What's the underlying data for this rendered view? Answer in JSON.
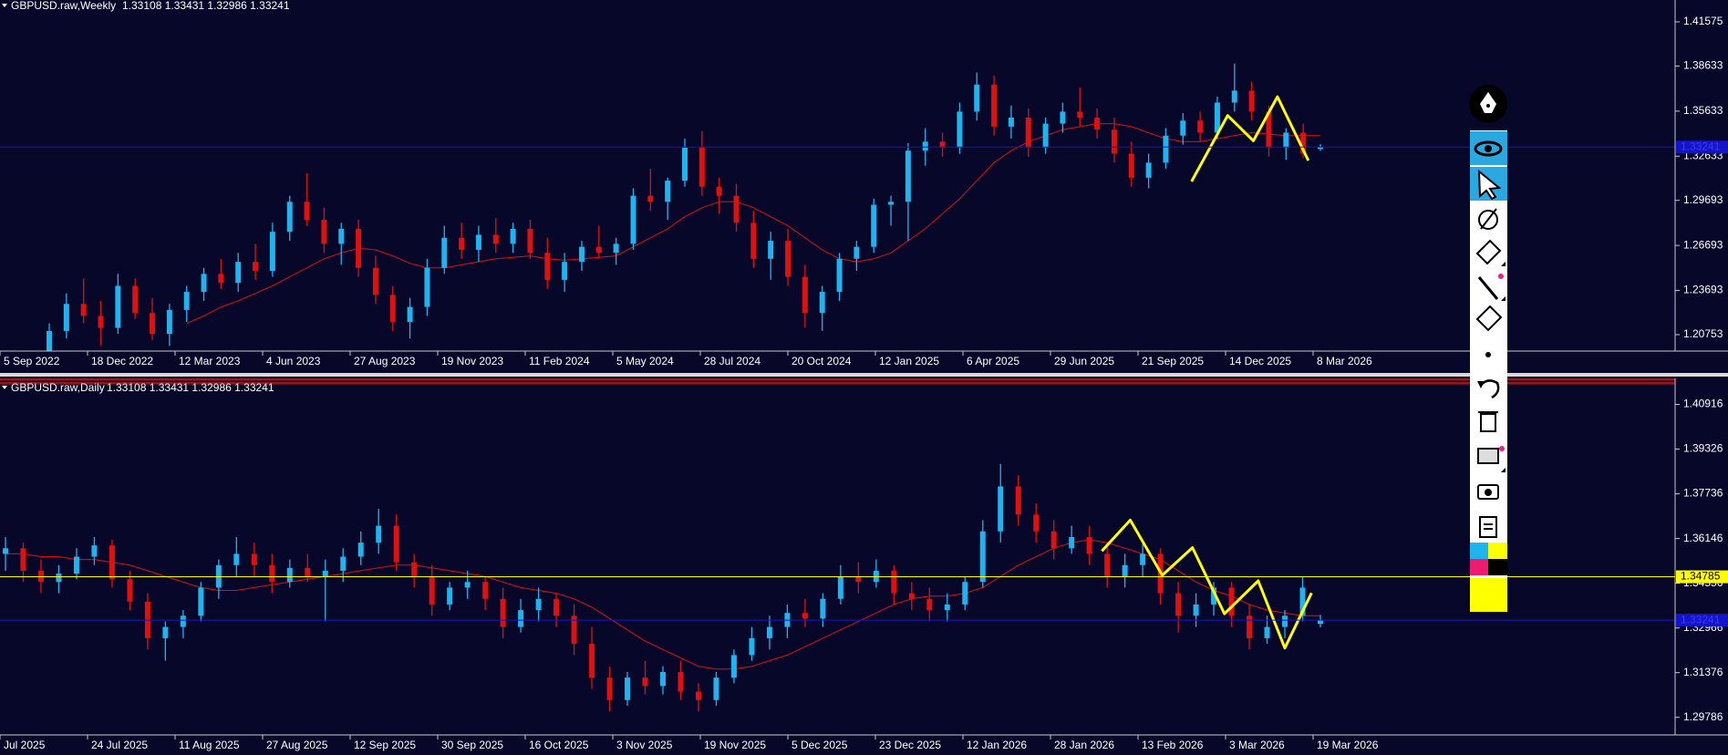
{
  "panes": [
    {
      "title": "GBPUSD.raw,Weekly",
      "quote": "1.33108 1.33431 1.32986 1.33241",
      "ylim": [
        1.1966,
        1.4303
      ],
      "yticks": [
        1.41575,
        1.38633,
        1.35633,
        1.32633,
        1.29693,
        1.26693,
        1.23693,
        1.20753
      ],
      "dates": [
        "5 Sep 2022",
        "18 Dec 2022",
        "12 Mar 2023",
        "4 Jun 2023",
        "27 Aug 2023",
        "19 Nov 2023",
        "11 Feb 2024",
        "5 May 2024",
        "28 Jul 2024",
        "20 Oct 2024",
        "12 Jan 2025",
        "6 Apr 2025",
        "29 Jun 2025",
        "21 Sep 2025",
        "14 Dec 2025",
        "8 Mar 2026"
      ],
      "up_color": "#1eb4f0",
      "down_color": "#e01010",
      "ma_color": "#e01010",
      "bid": 1.33241,
      "bid_color": "#1515c8",
      "candles": [
        [
          1.195,
          1.215,
          1.19,
          1.21
        ],
        [
          1.21,
          1.235,
          1.205,
          1.228
        ],
        [
          1.228,
          1.245,
          1.215,
          1.22
        ],
        [
          1.22,
          1.23,
          1.2,
          1.212
        ],
        [
          1.212,
          1.248,
          1.208,
          1.24
        ],
        [
          1.24,
          1.245,
          1.218,
          1.222
        ],
        [
          1.222,
          1.232,
          1.204,
          1.208
        ],
        [
          1.208,
          1.228,
          1.2,
          1.224
        ],
        [
          1.224,
          1.24,
          1.216,
          1.236
        ],
        [
          1.236,
          1.252,
          1.23,
          1.248
        ],
        [
          1.248,
          1.258,
          1.238,
          1.242
        ],
        [
          1.242,
          1.262,
          1.236,
          1.256
        ],
        [
          1.256,
          1.268,
          1.244,
          1.25
        ],
        [
          1.25,
          1.282,
          1.246,
          1.276
        ],
        [
          1.276,
          1.3,
          1.27,
          1.296
        ],
        [
          1.296,
          1.315,
          1.28,
          1.284
        ],
        [
          1.284,
          1.292,
          1.262,
          1.268
        ],
        [
          1.268,
          1.282,
          1.254,
          1.278
        ],
        [
          1.278,
          1.284,
          1.246,
          1.252
        ],
        [
          1.252,
          1.26,
          1.228,
          1.234
        ],
        [
          1.234,
          1.24,
          1.21,
          1.216
        ],
        [
          1.216,
          1.232,
          1.205,
          1.226
        ],
        [
          1.226,
          1.258,
          1.22,
          1.252
        ],
        [
          1.252,
          1.28,
          1.248,
          1.272
        ],
        [
          1.272,
          1.282,
          1.258,
          1.264
        ],
        [
          1.264,
          1.28,
          1.256,
          1.274
        ],
        [
          1.274,
          1.285,
          1.262,
          1.268
        ],
        [
          1.268,
          1.282,
          1.262,
          1.278
        ],
        [
          1.278,
          1.284,
          1.258,
          1.262
        ],
        [
          1.262,
          1.272,
          1.238,
          1.244
        ],
        [
          1.244,
          1.262,
          1.236,
          1.256
        ],
        [
          1.256,
          1.27,
          1.25,
          1.266
        ],
        [
          1.266,
          1.28,
          1.258,
          1.262
        ],
        [
          1.262,
          1.272,
          1.254,
          1.268
        ],
        [
          1.268,
          1.305,
          1.264,
          1.3
        ],
        [
          1.3,
          1.318,
          1.29,
          1.296
        ],
        [
          1.296,
          1.312,
          1.284,
          1.31
        ],
        [
          1.31,
          1.338,
          1.306,
          1.332
        ],
        [
          1.332,
          1.343,
          1.3,
          1.306
        ],
        [
          1.306,
          1.312,
          1.288,
          1.3
        ],
        [
          1.3,
          1.308,
          1.276,
          1.282
        ],
        [
          1.282,
          1.29,
          1.252,
          1.258
        ],
        [
          1.258,
          1.276,
          1.244,
          1.27
        ],
        [
          1.27,
          1.278,
          1.24,
          1.246
        ],
        [
          1.246,
          1.254,
          1.212,
          1.222
        ],
        [
          1.222,
          1.24,
          1.21,
          1.236
        ],
        [
          1.236,
          1.262,
          1.23,
          1.258
        ],
        [
          1.258,
          1.27,
          1.25,
          1.266
        ],
        [
          1.266,
          1.298,
          1.262,
          1.294
        ],
        [
          1.294,
          1.3,
          1.28,
          1.296
        ],
        [
          1.296,
          1.335,
          1.27,
          1.33
        ],
        [
          1.33,
          1.345,
          1.32,
          1.336
        ],
        [
          1.336,
          1.342,
          1.326,
          1.332
        ],
        [
          1.332,
          1.362,
          1.328,
          1.356
        ],
        [
          1.356,
          1.382,
          1.35,
          1.374
        ],
        [
          1.374,
          1.38,
          1.34,
          1.346
        ],
        [
          1.346,
          1.36,
          1.338,
          1.352
        ],
        [
          1.352,
          1.358,
          1.326,
          1.332
        ],
        [
          1.332,
          1.352,
          1.328,
          1.348
        ],
        [
          1.348,
          1.362,
          1.342,
          1.356
        ],
        [
          1.356,
          1.372,
          1.346,
          1.352
        ],
        [
          1.352,
          1.358,
          1.338,
          1.344
        ],
        [
          1.344,
          1.352,
          1.322,
          1.328
        ],
        [
          1.328,
          1.336,
          1.306,
          1.312
        ],
        [
          1.312,
          1.328,
          1.305,
          1.322
        ],
        [
          1.322,
          1.345,
          1.318,
          1.34
        ],
        [
          1.34,
          1.355,
          1.334,
          1.35
        ],
        [
          1.35,
          1.356,
          1.336,
          1.342
        ],
        [
          1.342,
          1.366,
          1.338,
          1.362
        ],
        [
          1.362,
          1.388,
          1.356,
          1.37
        ],
        [
          1.37,
          1.376,
          1.35,
          1.356
        ],
        [
          1.356,
          1.36,
          1.326,
          1.332
        ],
        [
          1.332,
          1.345,
          1.324,
          1.342
        ],
        [
          1.342,
          1.348,
          1.325,
          1.328
        ],
        [
          1.33108,
          1.33431,
          1.32986,
          1.33241
        ]
      ],
      "ma": [
        null,
        null,
        null,
        null,
        null,
        null,
        null,
        null,
        1.215,
        1.22,
        1.226,
        1.23,
        1.235,
        1.24,
        1.246,
        1.252,
        1.258,
        1.262,
        1.265,
        1.264,
        1.26,
        1.255,
        1.252,
        1.252,
        1.254,
        1.256,
        1.258,
        1.259,
        1.26,
        1.258,
        1.257,
        1.258,
        1.259,
        1.26,
        1.266,
        1.272,
        1.278,
        1.286,
        1.292,
        1.296,
        1.296,
        1.292,
        1.286,
        1.28,
        1.272,
        1.264,
        1.258,
        1.256,
        1.258,
        1.262,
        1.27,
        1.278,
        1.288,
        1.298,
        1.31,
        1.322,
        1.33,
        1.336,
        1.34,
        1.344,
        1.346,
        1.348,
        1.348,
        1.346,
        1.342,
        1.338,
        1.336,
        1.336,
        1.338,
        1.34,
        1.342,
        1.341,
        1.34,
        1.34,
        1.34
      ],
      "zigzag": {
        "color": "#ffff00",
        "x": [
          66.5,
          68.6,
          70.1,
          71.5,
          73.3
        ],
        "y": [
          1.3095,
          1.3534,
          1.3366,
          1.3659,
          1.3234
        ]
      },
      "hlines": []
    },
    {
      "title": "GBPUSD.raw,Daily",
      "quote": "1.33108 1.33431 1.32986 1.33241",
      "ylim": [
        1.2916,
        1.4184
      ],
      "yticks": [
        1.40916,
        1.39326,
        1.37736,
        1.36146,
        1.34556,
        1.32966,
        1.31376,
        1.29786
      ],
      "dates": [
        "Jul 2025",
        "24 Jul 2025",
        "11 Aug 2025",
        "27 Aug 2025",
        "12 Sep 2025",
        "30 Sep 2025",
        "16 Oct 2025",
        "3 Nov 2025",
        "19 Nov 2025",
        "5 Dec 2025",
        "23 Dec 2025",
        "12 Jan 2026",
        "28 Jan 2026",
        "13 Feb 2026",
        "3 Mar 2026",
        "19 Mar 2026"
      ],
      "up_color": "#1eb4f0",
      "down_color": "#e01010",
      "ma_color": "#e01010",
      "bid": 1.33241,
      "bid_color": "#1515c8",
      "candles": [
        [
          1.356,
          1.362,
          1.35,
          1.358
        ],
        [
          1.358,
          1.36,
          1.346,
          1.35
        ],
        [
          1.35,
          1.354,
          1.342,
          1.346
        ],
        [
          1.346,
          1.352,
          1.342,
          1.349
        ],
        [
          1.349,
          1.358,
          1.347,
          1.355
        ],
        [
          1.355,
          1.362,
          1.352,
          1.359
        ],
        [
          1.359,
          1.361,
          1.344,
          1.347
        ],
        [
          1.347,
          1.35,
          1.336,
          1.339
        ],
        [
          1.339,
          1.342,
          1.322,
          1.326
        ],
        [
          1.326,
          1.332,
          1.318,
          1.33
        ],
        [
          1.33,
          1.336,
          1.326,
          1.334
        ],
        [
          1.334,
          1.346,
          1.332,
          1.344
        ],
        [
          1.344,
          1.354,
          1.34,
          1.352
        ],
        [
          1.352,
          1.362,
          1.348,
          1.356
        ],
        [
          1.356,
          1.36,
          1.348,
          1.352
        ],
        [
          1.352,
          1.356,
          1.342,
          1.346
        ],
        [
          1.346,
          1.354,
          1.344,
          1.351
        ],
        [
          1.351,
          1.356,
          1.346,
          1.348
        ],
        [
          1.348,
          1.354,
          1.332,
          1.35
        ],
        [
          1.35,
          1.358,
          1.346,
          1.355
        ],
        [
          1.355,
          1.364,
          1.352,
          1.36
        ],
        [
          1.36,
          1.372,
          1.356,
          1.366
        ],
        [
          1.366,
          1.37,
          1.35,
          1.353
        ],
        [
          1.353,
          1.356,
          1.344,
          1.348
        ],
        [
          1.348,
          1.352,
          1.334,
          1.338
        ],
        [
          1.338,
          1.346,
          1.336,
          1.344
        ],
        [
          1.344,
          1.35,
          1.34,
          1.346
        ],
        [
          1.346,
          1.348,
          1.336,
          1.34
        ],
        [
          1.34,
          1.344,
          1.326,
          1.33
        ],
        [
          1.33,
          1.34,
          1.328,
          1.336
        ],
        [
          1.336,
          1.344,
          1.332,
          1.34
        ],
        [
          1.34,
          1.342,
          1.33,
          1.334
        ],
        [
          1.334,
          1.338,
          1.32,
          1.324
        ],
        [
          1.324,
          1.33,
          1.308,
          1.312
        ],
        [
          1.312,
          1.316,
          1.3,
          1.304
        ],
        [
          1.304,
          1.314,
          1.302,
          1.312
        ],
        [
          1.312,
          1.318,
          1.306,
          1.309
        ],
        [
          1.309,
          1.316,
          1.306,
          1.314
        ],
        [
          1.314,
          1.318,
          1.304,
          1.307
        ],
        [
          1.307,
          1.31,
          1.3,
          1.304
        ],
        [
          1.304,
          1.314,
          1.302,
          1.312
        ],
        [
          1.312,
          1.322,
          1.31,
          1.32
        ],
        [
          1.32,
          1.33,
          1.318,
          1.326
        ],
        [
          1.326,
          1.334,
          1.322,
          1.33
        ],
        [
          1.33,
          1.338,
          1.326,
          1.335
        ],
        [
          1.335,
          1.34,
          1.33,
          1.333
        ],
        [
          1.333,
          1.342,
          1.33,
          1.34
        ],
        [
          1.34,
          1.352,
          1.338,
          1.348
        ],
        [
          1.348,
          1.353,
          1.342,
          1.346
        ],
        [
          1.346,
          1.354,
          1.344,
          1.35
        ],
        [
          1.35,
          1.352,
          1.338,
          1.342
        ],
        [
          1.342,
          1.346,
          1.336,
          1.34
        ],
        [
          1.34,
          1.344,
          1.332,
          1.336
        ],
        [
          1.336,
          1.342,
          1.332,
          1.338
        ],
        [
          1.338,
          1.348,
          1.336,
          1.346
        ],
        [
          1.346,
          1.368,
          1.344,
          1.364
        ],
        [
          1.364,
          1.388,
          1.36,
          1.38
        ],
        [
          1.38,
          1.384,
          1.366,
          1.37
        ],
        [
          1.37,
          1.374,
          1.36,
          1.364
        ],
        [
          1.364,
          1.368,
          1.354,
          1.358
        ],
        [
          1.358,
          1.366,
          1.356,
          1.362
        ],
        [
          1.362,
          1.366,
          1.352,
          1.356
        ],
        [
          1.356,
          1.36,
          1.344,
          1.348
        ],
        [
          1.348,
          1.356,
          1.344,
          1.352
        ],
        [
          1.352,
          1.36,
          1.348,
          1.356
        ],
        [
          1.356,
          1.358,
          1.338,
          1.342
        ],
        [
          1.342,
          1.346,
          1.328,
          1.334
        ],
        [
          1.334,
          1.342,
          1.33,
          1.338
        ],
        [
          1.338,
          1.346,
          1.334,
          1.344
        ],
        [
          1.344,
          1.346,
          1.33,
          1.334
        ],
        [
          1.334,
          1.338,
          1.322,
          1.326
        ],
        [
          1.326,
          1.334,
          1.324,
          1.33
        ],
        [
          1.33,
          1.336,
          1.326,
          1.334
        ],
        [
          1.334,
          1.348,
          1.332,
          1.344
        ],
        [
          1.33108,
          1.33431,
          1.32986,
          1.33241
        ]
      ],
      "ma": [
        1.356,
        1.356,
        1.355,
        1.355,
        1.354,
        1.354,
        1.353,
        1.352,
        1.35,
        1.348,
        1.346,
        1.344,
        1.343,
        1.343,
        1.344,
        1.345,
        1.346,
        1.347,
        1.348,
        1.349,
        1.35,
        1.351,
        1.352,
        1.352,
        1.351,
        1.35,
        1.349,
        1.348,
        1.346,
        1.344,
        1.343,
        1.342,
        1.34,
        1.337,
        1.333,
        1.329,
        1.325,
        1.322,
        1.319,
        1.316,
        1.315,
        1.315,
        1.316,
        1.318,
        1.32,
        1.323,
        1.326,
        1.329,
        1.332,
        1.335,
        1.338,
        1.34,
        1.341,
        1.341,
        1.342,
        1.344,
        1.348,
        1.352,
        1.355,
        1.358,
        1.36,
        1.361,
        1.36,
        1.358,
        1.356,
        1.354,
        1.35,
        1.346,
        1.343,
        1.341,
        1.338,
        1.336,
        1.335,
        1.334,
        1.334
      ],
      "zigzag": {
        "color": "#ffff00",
        "x": [
          61.7,
          63.3,
          65.1,
          66.8,
          68.6,
          70.5,
          72.0,
          73.5
        ],
        "y": [
          1.357,
          1.368,
          1.3484,
          1.3582,
          1.3347,
          1.3464,
          1.3225,
          1.3421
        ]
      },
      "hlines": [
        {
          "value": 1.34785,
          "color": "#ffff00"
        }
      ]
    }
  ]
}
